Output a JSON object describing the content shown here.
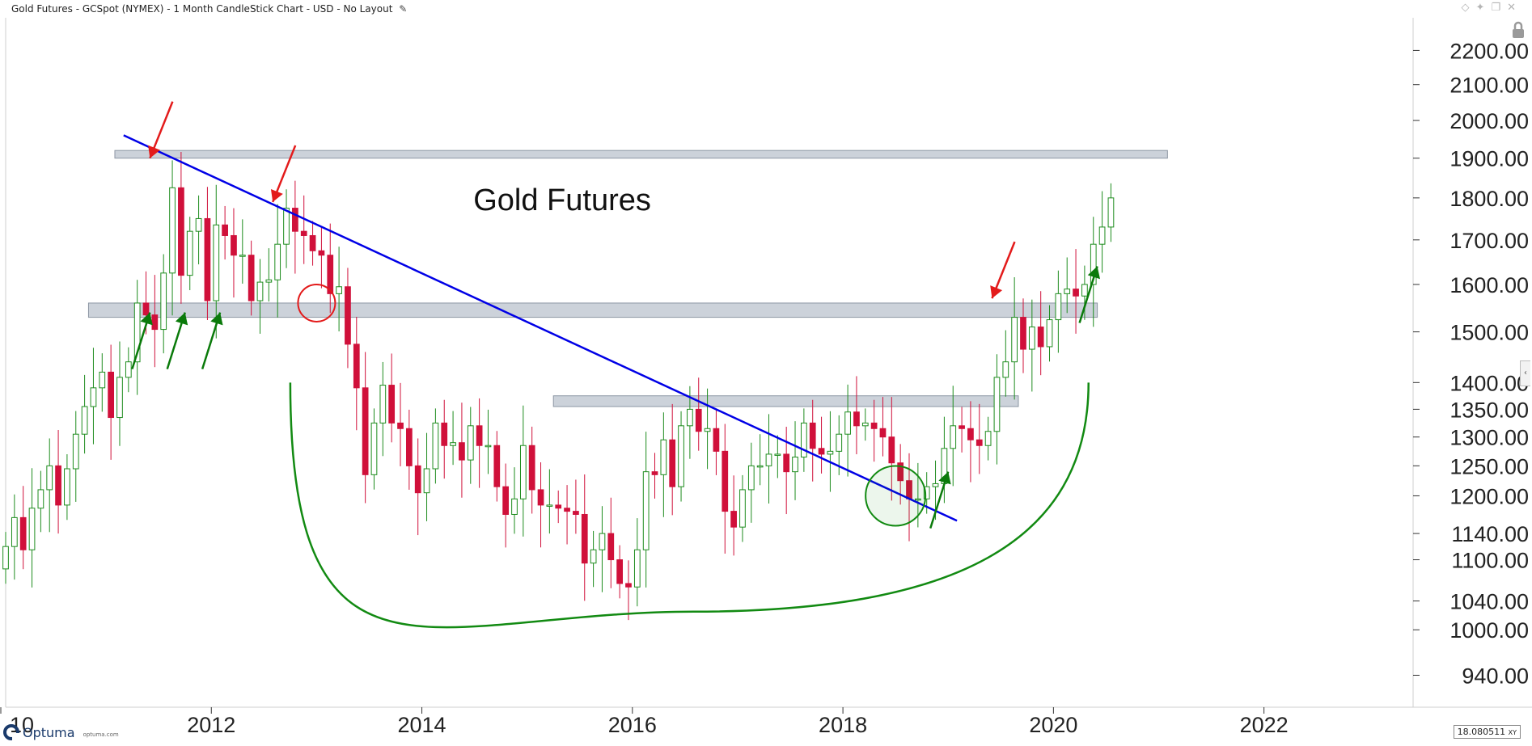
{
  "header": {
    "title": "Gold Futures - GCSpot (NYMEX) - 1 Month CandleStick Chart - USD - No Layout",
    "edit_icon": "pencil-icon",
    "window_icons": [
      "diamond-icon",
      "pin-icon",
      "restore-icon",
      "close-icon"
    ]
  },
  "footer": {
    "logo_text": "Optuma",
    "logo_url": "optuma.com",
    "readout": "18.080511",
    "readout_suffix": "XY"
  },
  "colors": {
    "bull": "#1e8c1e",
    "bear": "#d0103a",
    "trendline": "#0000e6",
    "zone": "#c3cad3",
    "arc": "#128a12",
    "red_arrow": "#e31b1b",
    "green_arrow": "#0a7a0a"
  },
  "chart_data": {
    "type": "candlestick",
    "title": "Gold Futures",
    "xlabel": "",
    "ylabel": "",
    "y_scale": "log",
    "ylim": [
      900,
      2300
    ],
    "xlim": [
      "2010-01",
      "2023-06"
    ],
    "x_ticks": [
      "10",
      "2012",
      "2014",
      "2016",
      "2018",
      "2020",
      "2022"
    ],
    "y_ticks": [
      "940.00",
      "1000.00",
      "1040.00",
      "1100.00",
      "1140.00",
      "1200.00",
      "1250.00",
      "1300.00",
      "1350.00",
      "1400.00",
      "1500.00",
      "1600.00",
      "1700.00",
      "1800.00",
      "1900.00",
      "2000.00",
      "2100.00",
      "2200.00"
    ],
    "y_tick_values": [
      940,
      1000,
      1040,
      1100,
      1140,
      1200,
      1250,
      1300,
      1350,
      1400,
      1500,
      1600,
      1700,
      1800,
      1900,
      2000,
      2100,
      2200
    ],
    "grid": false,
    "candles": {
      "start": "2010-01",
      "interval": "1 month",
      "close": [
        1120,
        1165,
        1115,
        1180,
        1210,
        1250,
        1185,
        1245,
        1305,
        1355,
        1390,
        1420,
        1335,
        1410,
        1440,
        1560,
        1535,
        1505,
        1625,
        1825,
        1620,
        1720,
        1750,
        1565,
        1735,
        1710,
        1665,
        1665,
        1565,
        1605,
        1610,
        1690,
        1775,
        1720,
        1710,
        1675,
        1665,
        1580,
        1595,
        1475,
        1390,
        1235,
        1325,
        1395,
        1325,
        1315,
        1250,
        1205,
        1245,
        1325,
        1285,
        1290,
        1260,
        1320,
        1285,
        1285,
        1215,
        1170,
        1195,
        1285,
        1210,
        1185,
        1185,
        1180,
        1175,
        1170,
        1095,
        1115,
        1140,
        1100,
        1065,
        1060,
        1115,
        1240,
        1235,
        1295,
        1215,
        1320,
        1350,
        1310,
        1315,
        1275,
        1175,
        1150,
        1210,
        1250,
        1250,
        1270,
        1270,
        1240,
        1265,
        1325,
        1280,
        1270,
        1275,
        1305,
        1345,
        1320,
        1325,
        1315,
        1300,
        1255,
        1225,
        1195,
        1195,
        1215,
        1220,
        1280,
        1320,
        1315,
        1295,
        1285,
        1310,
        1410,
        1440,
        1530,
        1465,
        1510,
        1470,
        1525,
        1580,
        1590,
        1575,
        1600,
        1690,
        1730,
        1800
      ]
    },
    "series": [
      {
        "name": "",
        "kind": "zone",
        "low": 1900,
        "high": 1920,
        "from": "2011-02",
        "to": "2021-02"
      },
      {
        "name": "",
        "kind": "zone",
        "low": 1530,
        "high": 1560,
        "from": "2010-11",
        "to": "2020-06"
      },
      {
        "name": "",
        "kind": "zone",
        "low": 1355,
        "high": 1375,
        "from": "2015-04",
        "to": "2019-09"
      },
      {
        "name": "",
        "kind": "trendline",
        "x": [
          "2011-03",
          "2019-02"
        ],
        "y": [
          1960,
          1160
        ]
      },
      {
        "name": "",
        "kind": "arc",
        "x": [
          "2012-10",
          "2016-08",
          "2020-05"
        ],
        "y": [
          1400,
          1025,
          1400
        ]
      }
    ],
    "annotations": [
      {
        "type": "title",
        "text": "Gold Futures",
        "x": "2015-05",
        "y": 1770
      },
      {
        "type": "arrow-down",
        "color": "red",
        "x": "2011-06",
        "y": 1900
      },
      {
        "type": "arrow-down",
        "color": "red",
        "x": "2012-08",
        "y": 1790
      },
      {
        "type": "arrow-down",
        "color": "red",
        "x": "2019-06",
        "y": 1570
      },
      {
        "type": "arrow-up",
        "color": "green",
        "x": "2011-06",
        "y": 1540
      },
      {
        "type": "arrow-up",
        "color": "green",
        "x": "2011-10",
        "y": 1540
      },
      {
        "type": "arrow-up",
        "color": "green",
        "x": "2012-02",
        "y": 1540
      },
      {
        "type": "arrow-up",
        "color": "green",
        "x": "2019-01",
        "y": 1240
      },
      {
        "type": "arrow-up",
        "color": "green",
        "x": "2020-06",
        "y": 1640
      },
      {
        "type": "circle",
        "color": "red",
        "x": "2013-01",
        "y": 1560
      },
      {
        "type": "circle",
        "color": "green",
        "x": "2018-07",
        "y": 1200
      }
    ]
  }
}
